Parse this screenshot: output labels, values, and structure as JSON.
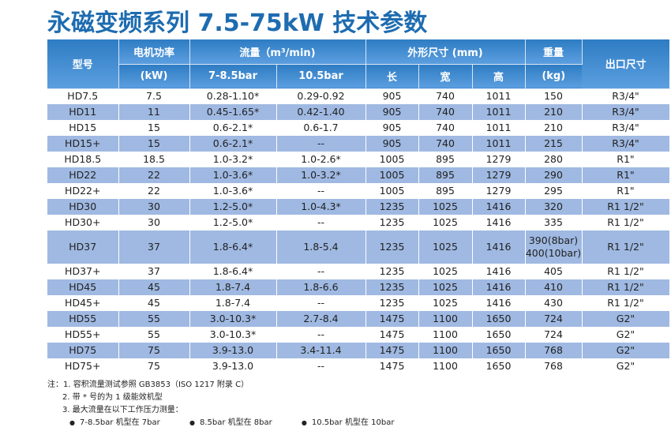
{
  "title": "永磁变频系列 7.5-75kW 技术参数",
  "header": {
    "model": "型号",
    "power": "电机功率",
    "power_unit": "(kW)",
    "flow": "流量（m³/min)",
    "flow_a": "7-8.5bar",
    "flow_b": "10.5bar",
    "dims": "外形尺寸 (mm)",
    "length": "长",
    "width": "宽",
    "height": "高",
    "weight": "重量",
    "weight_unit": "(kg)",
    "outlet": "出口尺寸"
  },
  "rows": [
    [
      "HD7.5",
      "7.5",
      "0.28-1.10*",
      "0.29-0.92",
      "905",
      "740",
      "1011",
      "150",
      "R3/4\""
    ],
    [
      "HD11",
      "11",
      "0.45-1.65*",
      "0.42-1.40",
      "905",
      "740",
      "1011",
      "210",
      "R3/4\""
    ],
    [
      "HD15",
      "15",
      "0.6-2.1*",
      "0.6-1.7",
      "905",
      "740",
      "1011",
      "210",
      "R3/4\""
    ],
    [
      "HD15+",
      "15",
      "0.6-2.1*",
      "--",
      "905",
      "740",
      "1011",
      "215",
      "R3/4\""
    ],
    [
      "HD18.5",
      "18.5",
      "1.0-3.2*",
      "1.0-2.6*",
      "1005",
      "895",
      "1279",
      "280",
      "R1\""
    ],
    [
      "HD22",
      "22",
      "1.0-3.6*",
      "1.0-3.2*",
      "1005",
      "895",
      "1279",
      "290",
      "R1\""
    ],
    [
      "HD22+",
      "22",
      "1.0-3.6*",
      "--",
      "1005",
      "895",
      "1279",
      "295",
      "R1\""
    ],
    [
      "HD30",
      "30",
      "1.2-5.0*",
      "1.0-4.3*",
      "1235",
      "1025",
      "1416",
      "320",
      "R1 1/2\""
    ],
    [
      "HD30+",
      "30",
      "1.2-5.0*",
      "--",
      "1235",
      "1025",
      "1416",
      "335",
      "R1 1/2\""
    ],
    [
      "HD37",
      "37",
      "1.8-6.4*",
      "1.8-5.4",
      "1235",
      "1025",
      "1416",
      "390(8bar)\n400(10bar)",
      "R1 1/2\""
    ],
    [
      "HD37+",
      "37",
      "1.8-6.4*",
      "--",
      "1235",
      "1025",
      "1416",
      "405",
      "R1 1/2\""
    ],
    [
      "HD45",
      "45",
      "1.8-7.4",
      "1.8-6.6",
      "1235",
      "1025",
      "1416",
      "410",
      "R1 1/2\""
    ],
    [
      "HD45+",
      "45",
      "1.8-7.4",
      "--",
      "1235",
      "1025",
      "1416",
      "430",
      "R1 1/2\""
    ],
    [
      "HD55",
      "55",
      "3.0-10.3*",
      "2.7-8.4",
      "1475",
      "1100",
      "1650",
      "724",
      "G2\""
    ],
    [
      "HD55+",
      "55",
      "3.0-10.3*",
      "--",
      "1475",
      "1100",
      "1650",
      "724",
      "G2\""
    ],
    [
      "HD75",
      "75",
      "3.9-13.0",
      "3.4-11.4",
      "1475",
      "1100",
      "1650",
      "768",
      "G2\""
    ],
    [
      "HD75+",
      "75",
      "3.9-13.0",
      "--",
      "1475",
      "1100",
      "1650",
      "768",
      "G2\""
    ]
  ],
  "notes": {
    "n1": "注：1. 容积流量测试参照 GB3853（ISO 1217 附录 C）",
    "n2": "2. 带 * 号的为 1 级能效机型",
    "n3": "3. 最大流量在以下工作压力测量：",
    "bullets": [
      "7-8.5bar 机型在 7bar",
      "8.5bar 机型在 8bar",
      "10.5bar 机型在 10bar"
    ]
  },
  "colors": {
    "title": "#1e6cb0",
    "header": "#2e7cc3",
    "row_alt": "#9fb9e2"
  }
}
